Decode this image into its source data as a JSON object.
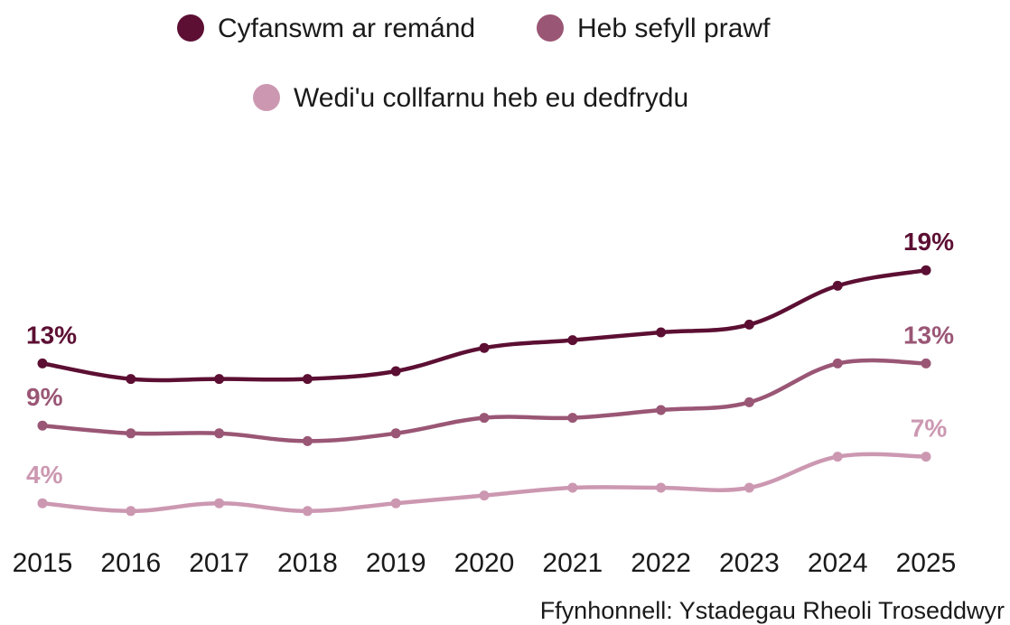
{
  "chart_data": {
    "type": "line",
    "title": "",
    "xlabel": "",
    "ylabel": "",
    "categories": [
      "2015",
      "2016",
      "2017",
      "2018",
      "2019",
      "2020",
      "2021",
      "2022",
      "2023",
      "2024",
      "2025"
    ],
    "ylim": [
      0,
      22
    ],
    "grid": false,
    "legend_position": "top",
    "series": [
      {
        "name": "Cyfanswm ar remánd",
        "color": "#5c0f33",
        "values": [
          13,
          12,
          12,
          12,
          12.5,
          14,
          14.5,
          15,
          15.5,
          18,
          19
        ],
        "labels": [
          {
            "index": 0,
            "text": "13%"
          },
          {
            "index": 10,
            "text": "19%"
          }
        ]
      },
      {
        "name": "Heb sefyll prawf",
        "color": "#9a5675",
        "values": [
          9,
          8.5,
          8.5,
          8,
          8.5,
          9.5,
          9.5,
          10,
          10.5,
          13,
          13
        ],
        "labels": [
          {
            "index": 0,
            "text": "9%"
          },
          {
            "index": 10,
            "text": "13%"
          }
        ]
      },
      {
        "name": "Wedi'u collfarnu heb eu dedfrydu",
        "color": "#cc98b1",
        "values": [
          4,
          3.5,
          4,
          3.5,
          4,
          4.5,
          5,
          5,
          5,
          7,
          7
        ],
        "labels": [
          {
            "index": 0,
            "text": "4%"
          },
          {
            "index": 10,
            "text": "7%"
          }
        ]
      }
    ]
  },
  "source": "Ffynhonnell: Ystadegau Rheoli Troseddwyr"
}
